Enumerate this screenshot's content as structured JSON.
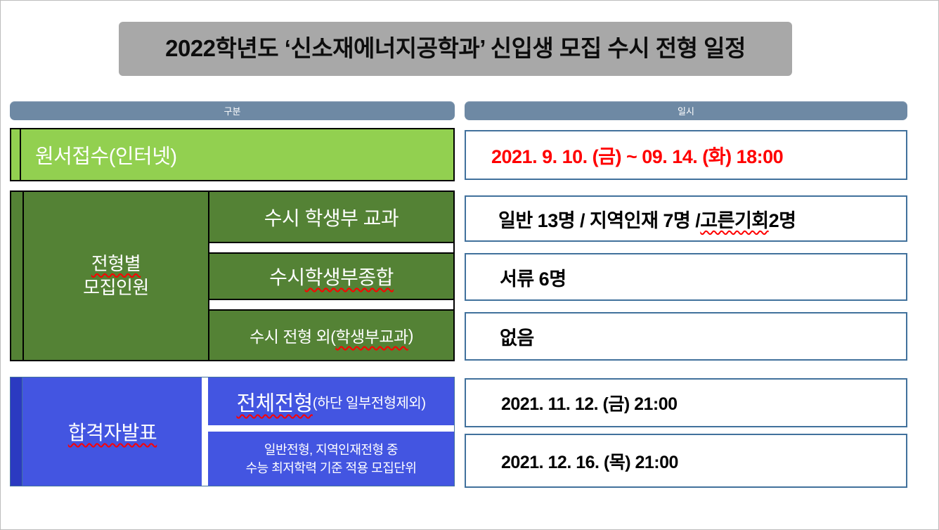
{
  "title": "2022학년도 ‘신소재에너지공학과’ 신입생 모집 수시 전형 일정",
  "columns": {
    "left": "구분",
    "right": "일시"
  },
  "application": {
    "label": "원서접수(인터넷)",
    "value": "2021. 9. 10. (금) ~ 09. 14. (화) 18:00"
  },
  "quota": {
    "group_label_wavy": "전형별",
    "group_label_line2": "모집인원",
    "rows": [
      {
        "label_pre": "수시 학생부 교과",
        "label_wavy": "",
        "label_post": "",
        "value_pre": "일반 13명 / 지역인재 7명 / ",
        "value_wavy": "고른기회",
        "value_post": " 2명"
      },
      {
        "label_pre": "수시 ",
        "label_wavy": "학생부종합",
        "label_post": "",
        "value_pre": "서류 6명",
        "value_wavy": "",
        "value_post": ""
      },
      {
        "label_pre": "수시 전형 외(",
        "label_wavy": "학생부교과",
        "label_post": ")",
        "value_pre": "없음",
        "value_wavy": "",
        "value_post": ""
      }
    ]
  },
  "announcement": {
    "group_label_wavy": "합격자발표",
    "rows": [
      {
        "label_big_wavy": "전체전형",
        "label_small": "(하단 일부전형제외)",
        "label_line1": "",
        "label_line2": "",
        "value": "2021. 11. 12. (금) 21:00"
      },
      {
        "label_big_wavy": "",
        "label_small": "",
        "label_line1": "일반전형, 지역인재전형 중",
        "label_line2": "수능 최저학력 기준 적용 모집단위",
        "value": "2021. 12. 16. (목) 21:00"
      }
    ]
  },
  "colors": {
    "title_bg": "#a8a8a8",
    "header_bg": "#6e89a4",
    "light_green": "#92d050",
    "dark_green": "#548235",
    "blue": "#4355e1",
    "dark_blue": "#2b3ac1",
    "cell_border": "#41719c",
    "date_red": "#ff0000",
    "squiggle_red": "#ff0000"
  }
}
